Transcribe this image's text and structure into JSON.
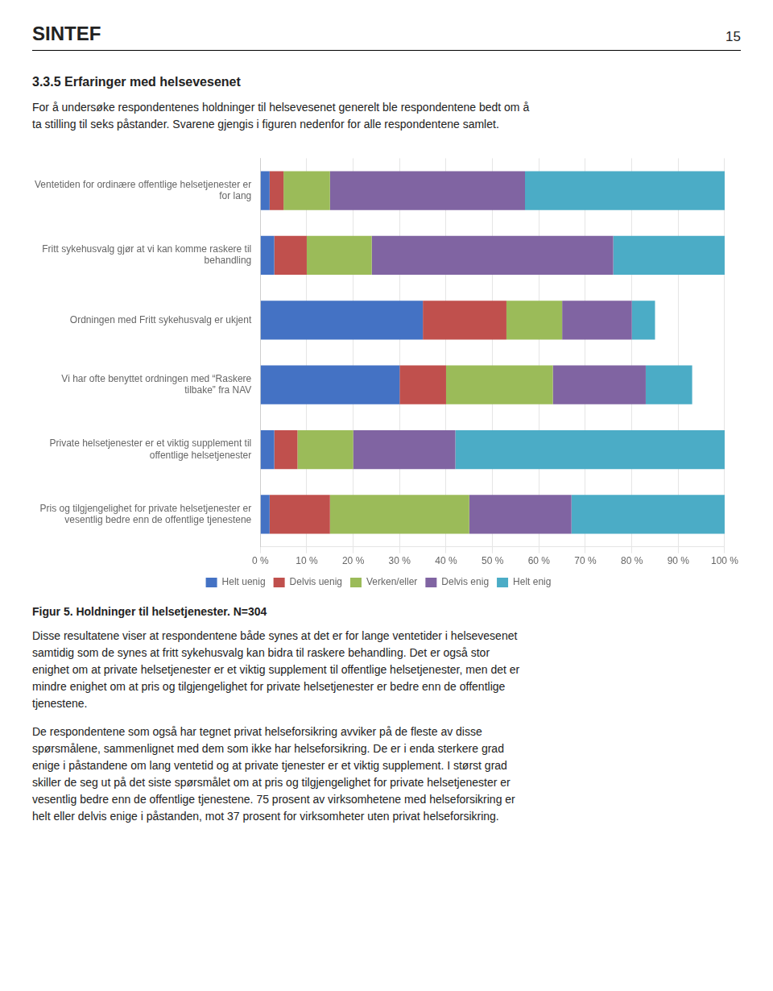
{
  "header": "SINTEF",
  "page_number": "15",
  "section_title": "3.3.5   Erfaringer med helsevesenet",
  "intro_text": "For å undersøke respondentenes holdninger til helsevesenet generelt ble respondentene bedt om å\nta stilling til seks påstander. Svarene gjengis i figuren nedenfor for alle respondentene samlet.",
  "body_text": [
    "Disse resultatene viser at respondentene både synes at det er for lange ventetider i helsevesenet\nsamtidig som de synes at fritt sykehusvalg kan bidra til raskere behandling. Det er også stor\nenighet om at private helsetjenester er et viktig supplement til offentlige helsetjenester, men det er\nmindre enighet om at pris og tilgjengelighet for private helsetjenester er bedre enn de offentlige\ntjenestene.",
    "De respondentene som også har tegnet privat helseforsikring avviker på de fleste av disse\nspørsmålene, sammenlignet med dem som ikke har helseforsikring. De er i enda sterkere grad\nenige i påstandene om lang ventetid og at private tjenester er et viktig supplement. I størst grad\nskiller de seg ut på det siste spørsmålet om at pris og tilgjengelighet for private helsetjenester er\nvesentlig bedre enn de offentlige tjenestene. 75 prosent av virksomhetene med helseforsikring er\nhelt eller delvis enige i påstanden, mot 37 prosent for virksomheter uten privat helseforsikring."
  ],
  "chart_data": {
    "type": "bar",
    "orientation": "horizontal",
    "stacked": true,
    "title": "Figur 5. Holdninger til helsetjenester. N=304",
    "categories": [
      "Ventetiden for ordinære offentlige helsetjenester er\nfor lang",
      "Fritt sykehusvalg gjør at vi kan komme raskere til\nbehandling",
      "Ordningen med Fritt sykehusvalg er ukjent",
      "Vi har ofte benyttet ordningen med “Raskere\ntilbake” fra NAV",
      "Private helsetjenester er et viktig supplement til\noffentlige helsetjenester",
      "Pris og tilgjengelighet for private helsetjenester er\nvesentlig bedre enn de offentlige tjenestene"
    ],
    "series": [
      {
        "name": "Helt uenig",
        "color": "#4472C4",
        "values": [
          2,
          3,
          35,
          30,
          3,
          2
        ]
      },
      {
        "name": "Delvis uenig",
        "color": "#C0504D",
        "values": [
          3,
          7,
          18,
          10,
          5,
          13
        ]
      },
      {
        "name": "Verken/eller",
        "color": "#9BBB59",
        "values": [
          10,
          14,
          12,
          23,
          12,
          30
        ]
      },
      {
        "name": "Delvis enig",
        "color": "#8064A2",
        "values": [
          42,
          52,
          15,
          20,
          22,
          22
        ]
      },
      {
        "name": "Helt enig",
        "color": "#4BACC6",
        "values": [
          43,
          24,
          5,
          10,
          58,
          33
        ]
      }
    ],
    "xlim": [
      0,
      100
    ],
    "xticks": [
      {
        "value": 0,
        "label": "0 %"
      },
      {
        "value": 10,
        "label": "10 %"
      },
      {
        "value": 20,
        "label": "20 %"
      },
      {
        "value": 30,
        "label": "30 %"
      },
      {
        "value": 40,
        "label": "40 %"
      },
      {
        "value": 50,
        "label": "50 %"
      },
      {
        "value": 60,
        "label": "60 %"
      },
      {
        "value": 70,
        "label": "70 %"
      },
      {
        "value": 80,
        "label": "80 %"
      },
      {
        "value": 90,
        "label": "90 %"
      },
      {
        "value": 100,
        "label": "100 %"
      }
    ],
    "grid": true,
    "legend": "bottom"
  }
}
